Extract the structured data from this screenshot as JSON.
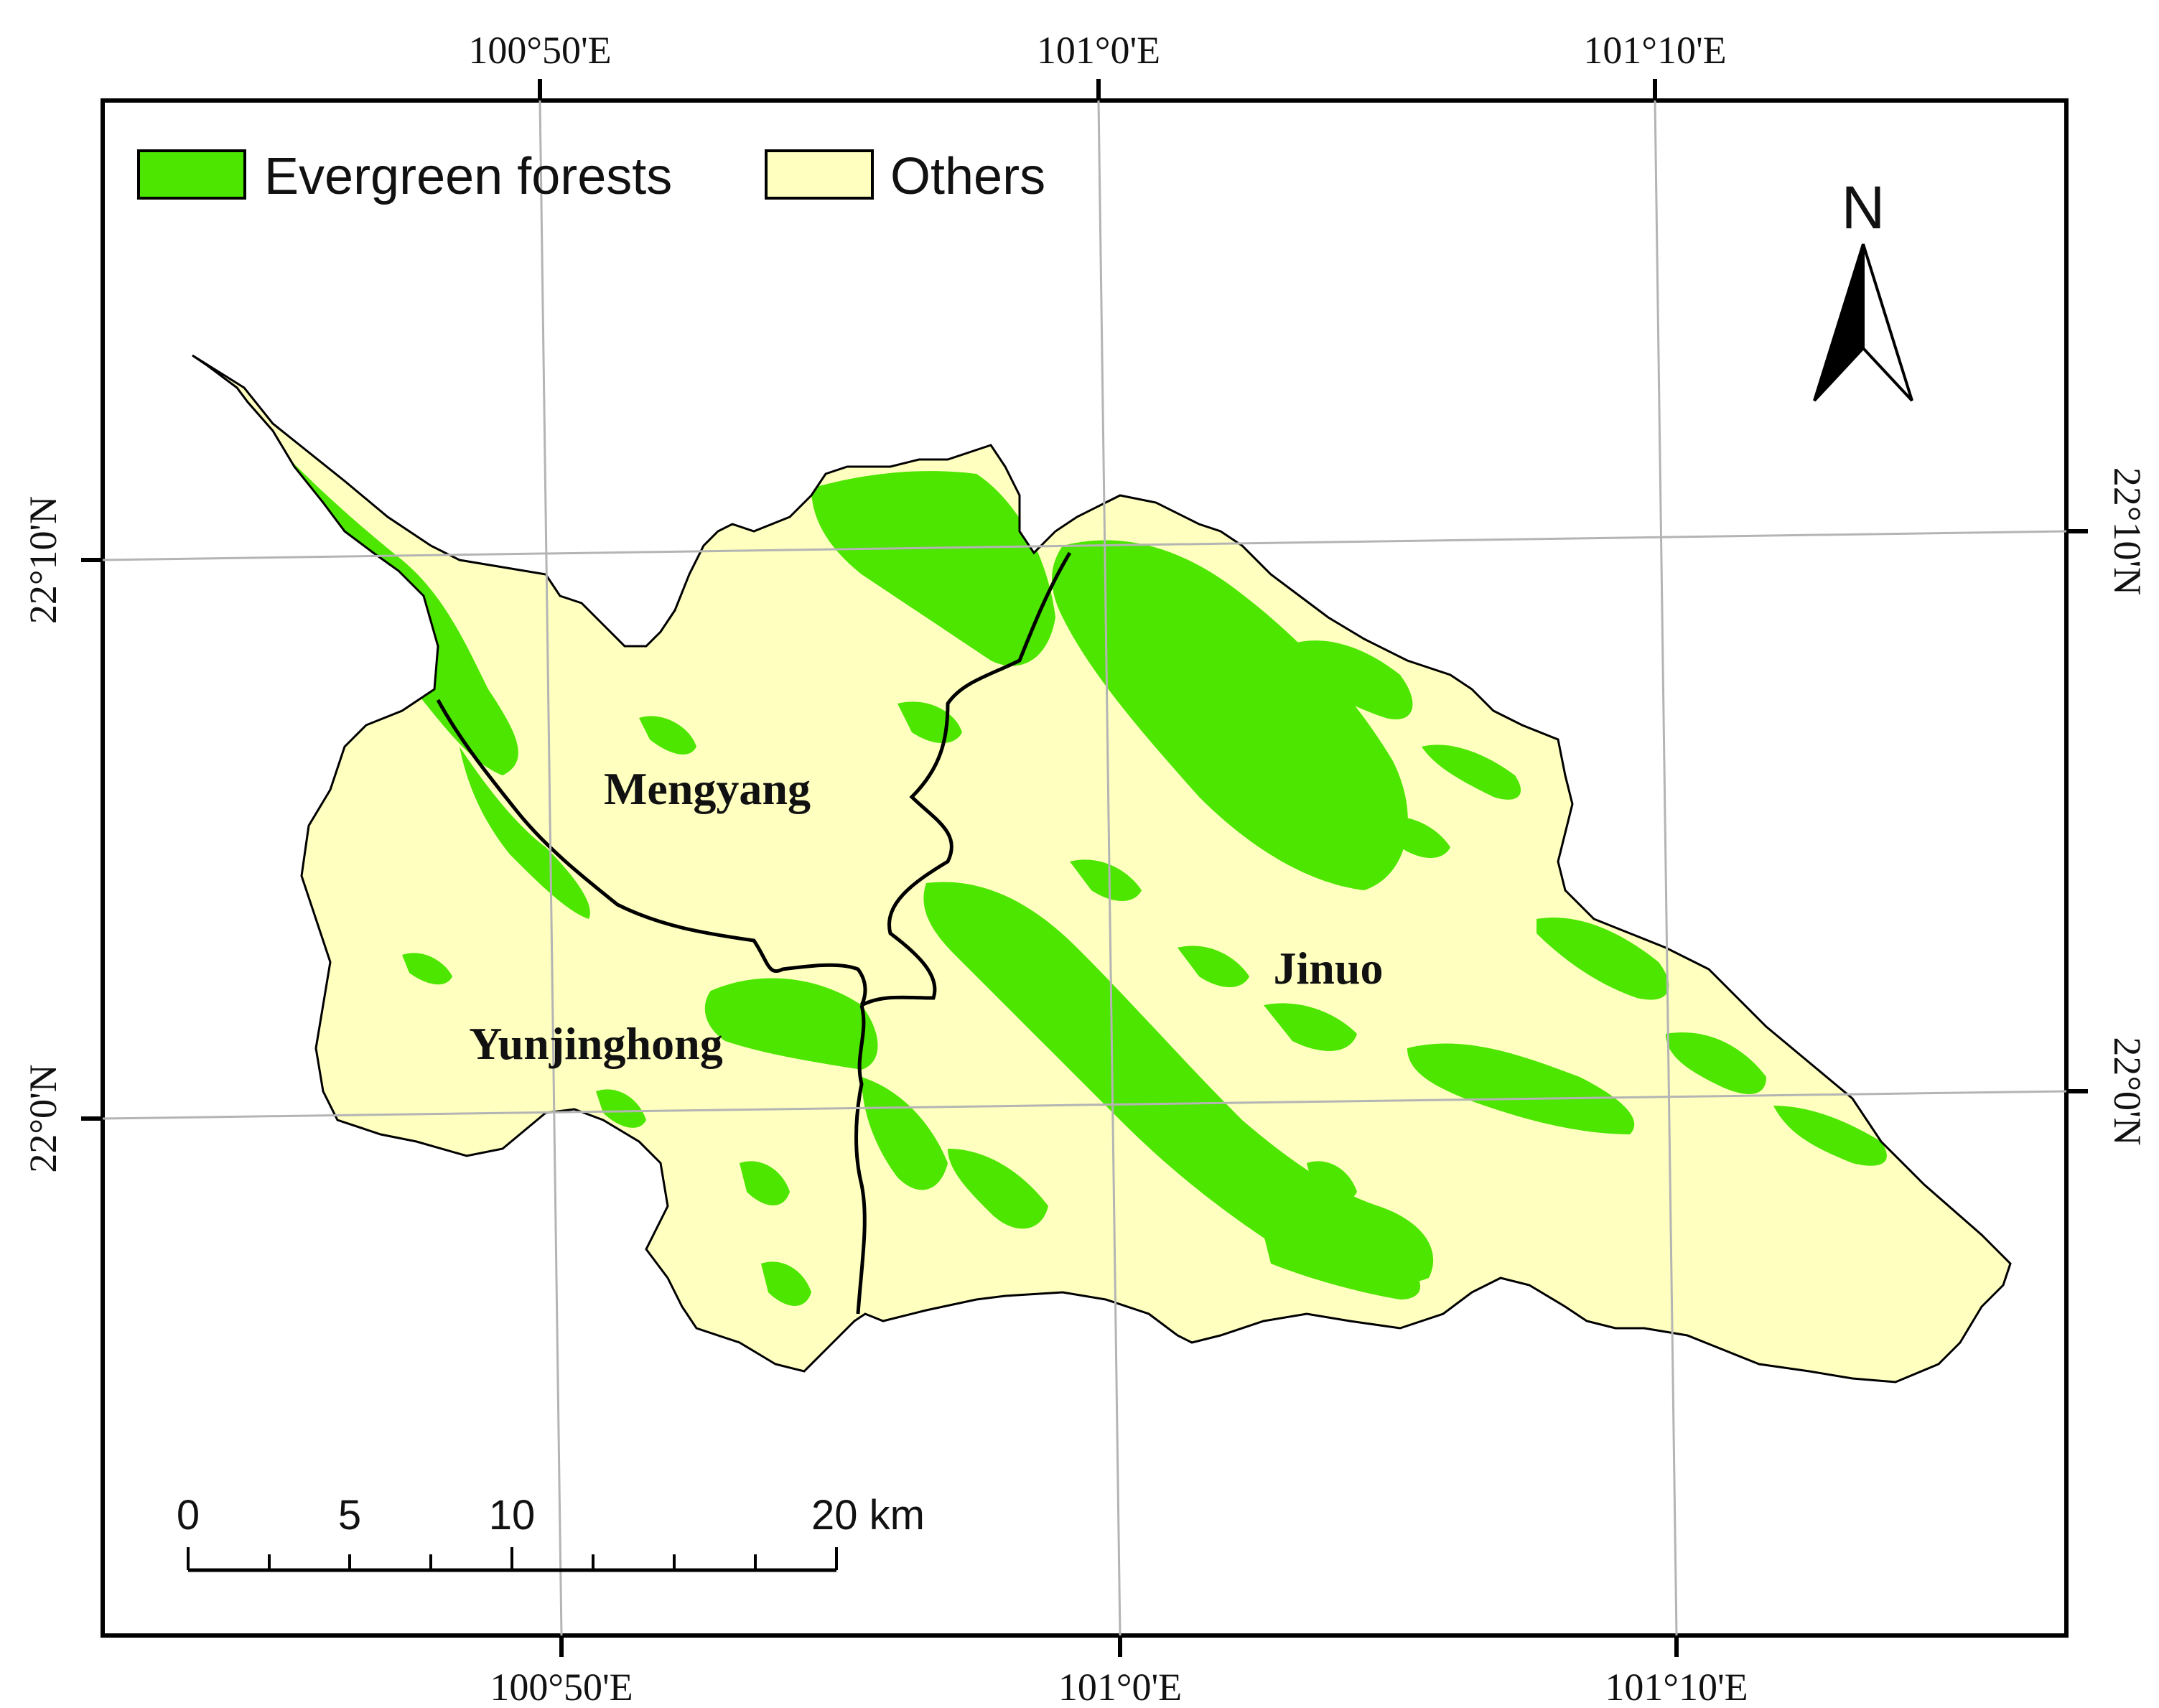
{
  "legend": {
    "items": [
      {
        "label": "Evergreen forests",
        "color": "#4ce600"
      },
      {
        "label": "Others",
        "color": "#ffffc0"
      }
    ]
  },
  "north_arrow": {
    "label": "N"
  },
  "graticule": {
    "top_labels": [
      "100°50'E",
      "101°0'E",
      "101°10'E"
    ],
    "bottom_labels": [
      "100°50'E",
      "101°0'E",
      "101°10'E"
    ],
    "left_labels": [
      "22°10'N",
      "22°0'N"
    ],
    "right_labels": [
      "22°10'N",
      "22°0'N"
    ]
  },
  "regions": [
    {
      "name": "Mengyang"
    },
    {
      "name": "Yunjinghong"
    },
    {
      "name": "Jinuo"
    }
  ],
  "scale_bar": {
    "ticks": [
      "0",
      "5",
      "10",
      "20 km"
    ]
  },
  "colors": {
    "forest": "#4ce600",
    "others": "#ffffc0",
    "boundary": "#000000",
    "graticule": "#b4b4b4"
  }
}
